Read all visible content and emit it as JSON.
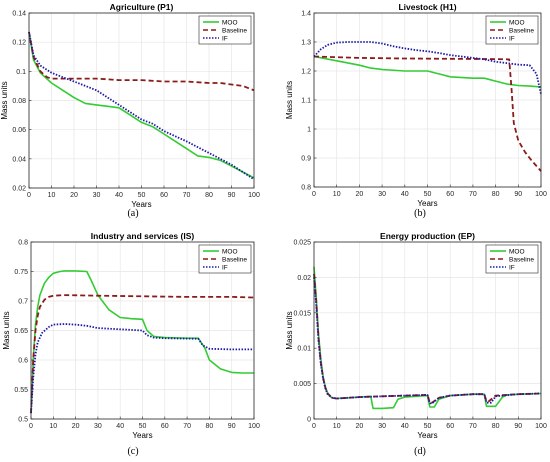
{
  "colors": {
    "moo": "#33cc33",
    "baseline": "#8b1a1a",
    "if": "#1a1aa6",
    "grid": "#e6e6e6",
    "axis": "#262626"
  },
  "chart_data": [
    {
      "type": "line",
      "title": "Agriculture (P1)",
      "panel_label": "(a)",
      "xlabel": "Years",
      "ylabel": "Mass units",
      "xlim": [
        0,
        100
      ],
      "ylim": [
        0.02,
        0.14
      ],
      "xticks": [
        0,
        10,
        20,
        30,
        40,
        50,
        60,
        70,
        80,
        90,
        100
      ],
      "yticks": [
        0.02,
        0.04,
        0.06,
        0.08,
        0.1,
        0.12,
        0.14
      ],
      "ytick_labels": [
        "0.02",
        "0.04",
        "0.06",
        "0.08",
        "0.1",
        "0.12",
        "0.14"
      ],
      "grid": true,
      "legend": "top-right",
      "series": [
        {
          "name": "MOO",
          "style": "solid",
          "x": [
            0,
            2,
            5,
            10,
            15,
            20,
            25,
            30,
            35,
            40,
            45,
            50,
            55,
            60,
            65,
            70,
            75,
            80,
            85,
            90,
            95,
            100
          ],
          "y": [
            0.127,
            0.108,
            0.099,
            0.092,
            0.087,
            0.082,
            0.078,
            0.077,
            0.076,
            0.075,
            0.07,
            0.065,
            0.062,
            0.057,
            0.052,
            0.047,
            0.042,
            0.041,
            0.039,
            0.035,
            0.031,
            0.027
          ]
        },
        {
          "name": "Baseline",
          "style": "dashed",
          "x": [
            0,
            2,
            5,
            8,
            10,
            20,
            30,
            40,
            50,
            60,
            70,
            80,
            85,
            90,
            95,
            100
          ],
          "y": [
            0.127,
            0.11,
            0.1,
            0.096,
            0.095,
            0.095,
            0.095,
            0.094,
            0.094,
            0.093,
            0.093,
            0.092,
            0.092,
            0.091,
            0.09,
            0.087
          ]
        },
        {
          "name": "IF",
          "style": "dotted",
          "x": [
            0,
            2,
            5,
            10,
            15,
            20,
            25,
            30,
            40,
            50,
            55,
            60,
            70,
            80,
            90,
            100
          ],
          "y": [
            0.127,
            0.111,
            0.104,
            0.099,
            0.096,
            0.093,
            0.09,
            0.087,
            0.077,
            0.067,
            0.064,
            0.059,
            0.052,
            0.044,
            0.036,
            0.026
          ]
        }
      ]
    },
    {
      "type": "line",
      "title": "Livestock (H1)",
      "panel_label": "(b)",
      "xlabel": "Years",
      "ylabel": "Mass units",
      "xlim": [
        0,
        100
      ],
      "ylim": [
        0.8,
        1.4
      ],
      "xticks": [
        0,
        10,
        20,
        30,
        40,
        50,
        60,
        70,
        80,
        90,
        100
      ],
      "yticks": [
        0.8,
        0.9,
        1.0,
        1.1,
        1.2,
        1.3,
        1.4
      ],
      "ytick_labels": [
        "0.8",
        "0.9",
        "1",
        "1.1",
        "1.2",
        "1.3",
        "1.4"
      ],
      "grid": true,
      "legend": "top-right",
      "series": [
        {
          "name": "MOO",
          "style": "solid",
          "x": [
            0,
            10,
            20,
            25,
            30,
            40,
            50,
            55,
            60,
            70,
            75,
            80,
            85,
            90,
            95,
            100
          ],
          "y": [
            1.25,
            1.235,
            1.22,
            1.21,
            1.205,
            1.2,
            1.2,
            1.19,
            1.18,
            1.175,
            1.175,
            1.165,
            1.155,
            1.15,
            1.148,
            1.145
          ]
        },
        {
          "name": "Baseline",
          "style": "dashed",
          "x": [
            0,
            20,
            40,
            60,
            80,
            86,
            87,
            88,
            90,
            93,
            96,
            100
          ],
          "y": [
            1.25,
            1.245,
            1.243,
            1.242,
            1.241,
            1.24,
            1.14,
            1.02,
            0.96,
            0.92,
            0.89,
            0.855
          ]
        },
        {
          "name": "IF",
          "style": "dotted",
          "x": [
            0,
            3,
            6,
            10,
            15,
            20,
            25,
            30,
            35,
            40,
            45,
            50,
            55,
            60,
            70,
            75,
            80,
            90,
            95,
            98,
            100
          ],
          "y": [
            1.25,
            1.275,
            1.29,
            1.298,
            1.3,
            1.3,
            1.3,
            1.295,
            1.285,
            1.278,
            1.272,
            1.268,
            1.262,
            1.255,
            1.245,
            1.24,
            1.232,
            1.222,
            1.22,
            1.19,
            1.12
          ]
        }
      ]
    },
    {
      "type": "line",
      "title": "Industry and services (IS)",
      "panel_label": "(c)",
      "xlabel": "Years",
      "ylabel": "Mass units",
      "xlim": [
        0,
        100
      ],
      "ylim": [
        0.5,
        0.8
      ],
      "xticks": [
        0,
        10,
        20,
        30,
        40,
        50,
        60,
        70,
        80,
        90,
        100
      ],
      "yticks": [
        0.5,
        0.55,
        0.6,
        0.65,
        0.7,
        0.75,
        0.8
      ],
      "ytick_labels": [
        "0.5",
        "0.55",
        "0.6",
        "0.65",
        "0.7",
        "0.75",
        "0.8"
      ],
      "grid": true,
      "legend": "top-right",
      "series": [
        {
          "name": "MOO",
          "style": "solid",
          "x": [
            0,
            1,
            2,
            3,
            4,
            6,
            8,
            10,
            13,
            15,
            20,
            25,
            27,
            30,
            35,
            40,
            45,
            50,
            52,
            55,
            60,
            70,
            75,
            78,
            80,
            85,
            90,
            95,
            100
          ],
          "y": [
            0.51,
            0.6,
            0.66,
            0.69,
            0.71,
            0.73,
            0.74,
            0.747,
            0.75,
            0.751,
            0.751,
            0.75,
            0.735,
            0.71,
            0.685,
            0.672,
            0.67,
            0.669,
            0.65,
            0.64,
            0.638,
            0.637,
            0.637,
            0.62,
            0.6,
            0.585,
            0.579,
            0.578,
            0.578
          ]
        },
        {
          "name": "Baseline",
          "style": "dashed",
          "x": [
            0,
            1,
            2,
            3,
            4,
            6,
            8,
            10,
            15,
            30,
            50,
            70,
            90,
            100
          ],
          "y": [
            0.51,
            0.6,
            0.65,
            0.675,
            0.69,
            0.702,
            0.707,
            0.709,
            0.71,
            0.709,
            0.708,
            0.707,
            0.707,
            0.706
          ]
        },
        {
          "name": "IF",
          "style": "dotted",
          "x": [
            0,
            1,
            2,
            3,
            5,
            8,
            10,
            15,
            20,
            25,
            30,
            40,
            50,
            52,
            55,
            60,
            75,
            77,
            80,
            90,
            100
          ],
          "y": [
            0.51,
            0.57,
            0.61,
            0.63,
            0.646,
            0.656,
            0.66,
            0.661,
            0.66,
            0.658,
            0.654,
            0.652,
            0.65,
            0.642,
            0.638,
            0.637,
            0.636,
            0.625,
            0.619,
            0.618,
            0.618
          ]
        }
      ]
    },
    {
      "type": "line",
      "title": "Energy production (EP)",
      "panel_label": "(d)",
      "xlabel": "Years",
      "ylabel": "Mass units",
      "xlim": [
        0,
        100
      ],
      "ylim": [
        0,
        0.025
      ],
      "xticks": [
        0,
        10,
        20,
        30,
        40,
        50,
        60,
        70,
        80,
        90,
        100
      ],
      "yticks": [
        0,
        0.005,
        0.01,
        0.015,
        0.02,
        0.025
      ],
      "ytick_labels": [
        "0",
        "0.005",
        "0.01",
        "0.015",
        "0.02",
        "0.025"
      ],
      "grid": true,
      "legend": "top-right",
      "series": [
        {
          "name": "MOO",
          "style": "solid",
          "x": [
            0,
            1,
            2,
            3,
            4,
            5,
            6,
            7,
            8,
            10,
            15,
            20,
            25,
            26,
            30,
            35,
            37,
            40,
            45,
            50,
            51,
            53,
            55,
            60,
            70,
            75,
            76,
            78,
            80,
            83,
            85,
            90,
            100
          ],
          "y": [
            0.0215,
            0.017,
            0.012,
            0.0085,
            0.006,
            0.0045,
            0.0037,
            0.0032,
            0.003,
            0.0029,
            0.003,
            0.0031,
            0.0032,
            0.0015,
            0.0015,
            0.0016,
            0.0028,
            0.0031,
            0.0032,
            0.0033,
            0.0017,
            0.0017,
            0.0028,
            0.0033,
            0.0035,
            0.0035,
            0.0018,
            0.0018,
            0.0018,
            0.0031,
            0.0034,
            0.0035,
            0.0036
          ]
        },
        {
          "name": "Baseline",
          "style": "dashed",
          "x": [
            0,
            1,
            2,
            3,
            4,
            5,
            6,
            8,
            10,
            15,
            20,
            30,
            40,
            50,
            51,
            52,
            55,
            60,
            70,
            75,
            76,
            77,
            80,
            90,
            100
          ],
          "y": [
            0.0205,
            0.0165,
            0.0115,
            0.008,
            0.0058,
            0.0044,
            0.0036,
            0.003,
            0.0029,
            0.003,
            0.0031,
            0.0032,
            0.0033,
            0.0034,
            0.0023,
            0.0023,
            0.003,
            0.0033,
            0.0035,
            0.0035,
            0.0025,
            0.0025,
            0.0033,
            0.0035,
            0.0036
          ]
        },
        {
          "name": "IF",
          "style": "dotted",
          "x": [
            0,
            1,
            2,
            3,
            4,
            5,
            6,
            8,
            10,
            15,
            20,
            30,
            40,
            50,
            51,
            52,
            55,
            60,
            70,
            75,
            76,
            78,
            80,
            90,
            100
          ],
          "y": [
            0.02,
            0.016,
            0.011,
            0.0078,
            0.0057,
            0.0043,
            0.0035,
            0.003,
            0.0029,
            0.003,
            0.0031,
            0.0032,
            0.0033,
            0.0034,
            0.0022,
            0.0022,
            0.003,
            0.0033,
            0.0035,
            0.0035,
            0.0023,
            0.0023,
            0.0032,
            0.0035,
            0.0036
          ]
        }
      ]
    }
  ]
}
